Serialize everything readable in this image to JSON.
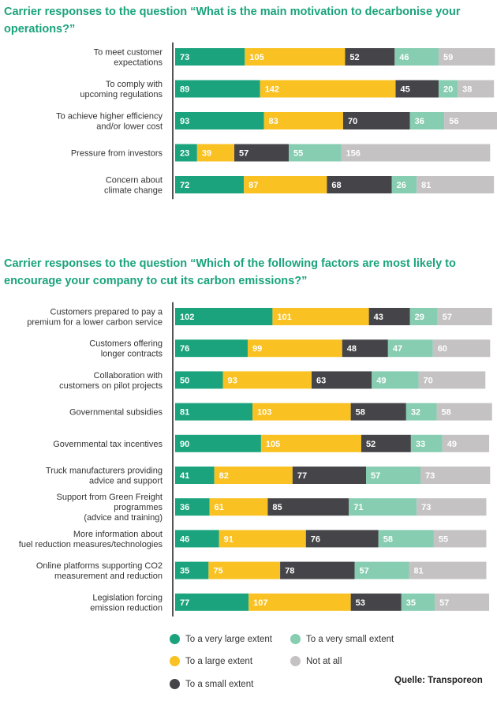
{
  "colors": {
    "very_large": "#1aa37c",
    "large": "#f9c121",
    "small": "#454549",
    "very_small": "#86cdb1",
    "not_at_all": "#c5c2c3"
  },
  "legend": [
    {
      "key": "very_large",
      "label": "To a very large extent"
    },
    {
      "key": "very_small",
      "label": "To a very small extent"
    },
    {
      "key": "large",
      "label": "To a large extent"
    },
    {
      "key": "not_at_all",
      "label": "Not at all"
    },
    {
      "key": "small",
      "label": "To a small extent"
    }
  ],
  "source": "Quelle: Transporeon",
  "chart_data": [
    {
      "type": "bar",
      "stacked": true,
      "orientation": "horizontal",
      "title": "Carrier responses to the question “What is the main motivation to decarbonise your operations?”",
      "series_names": [
        "To a very large extent",
        "To a large extent",
        "To a small extent",
        "To a very small extent",
        "Not at all"
      ],
      "categories": [
        [
          "To meet customer",
          "expectations"
        ],
        [
          "To comply with",
          "upcoming regulations"
        ],
        [
          "To achieve higher efficiency",
          "and/or lower cost"
        ],
        [
          "Pressure from investors"
        ],
        [
          "Concern about",
          "climate change"
        ]
      ],
      "values": [
        [
          73,
          105,
          52,
          46,
          59
        ],
        [
          89,
          142,
          45,
          20,
          38
        ],
        [
          93,
          83,
          70,
          36,
          56
        ],
        [
          23,
          39,
          57,
          55,
          156
        ],
        [
          72,
          87,
          68,
          26,
          81
        ]
      ]
    },
    {
      "type": "bar",
      "stacked": true,
      "orientation": "horizontal",
      "title": "Carrier responses to the question “Which of the following factors are most likely to encourage your company to cut its carbon emissions?”",
      "series_names": [
        "To a very large extent",
        "To a large extent",
        "To a small extent",
        "To a very small extent",
        "Not at all"
      ],
      "categories": [
        [
          "Customers prepared to pay a",
          "premium for a lower carbon service"
        ],
        [
          "Customers offering",
          "longer contracts"
        ],
        [
          "Collaboration with",
          "customers on pilot projects"
        ],
        [
          "Governmental subsidies"
        ],
        [
          "Governmental tax incentives"
        ],
        [
          "Truck manufacturers providing",
          "advice and support"
        ],
        [
          "Support from Green Freight",
          "programmes",
          "(advice and training)"
        ],
        [
          "More information about",
          "fuel reduction measures/technologies"
        ],
        [
          "Online platforms supporting CO2",
          "measurement and reduction"
        ],
        [
          "Legislation forcing",
          "emission reduction"
        ]
      ],
      "values": [
        [
          102,
          101,
          43,
          29,
          57
        ],
        [
          76,
          99,
          48,
          47,
          60
        ],
        [
          50,
          93,
          63,
          49,
          70
        ],
        [
          81,
          103,
          58,
          32,
          58
        ],
        [
          90,
          105,
          52,
          33,
          49
        ],
        [
          41,
          82,
          77,
          57,
          73
        ],
        [
          36,
          61,
          85,
          71,
          73
        ],
        [
          46,
          91,
          76,
          58,
          55
        ],
        [
          35,
          75,
          78,
          57,
          81
        ],
        [
          77,
          107,
          53,
          35,
          57
        ]
      ]
    }
  ]
}
